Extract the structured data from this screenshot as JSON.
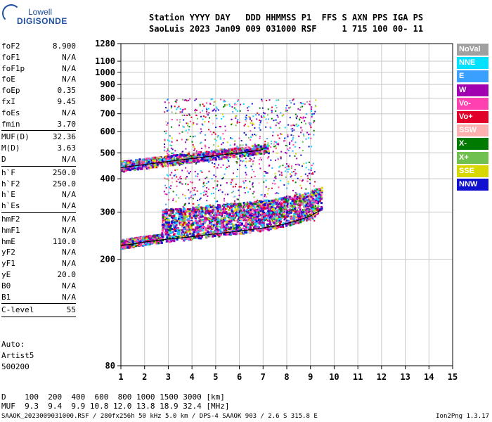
{
  "logo": {
    "line1": "Lowell",
    "line2": "DIGISONDE"
  },
  "header": {
    "line1": "Station YYYY DAY   DDD HHMMSS P1  FFS S AXN PPS IGA PS",
    "line2": "SaoLuis 2023 Jan09 009 031000 RSF     1 715 100 00- 11"
  },
  "params": [
    {
      "label": "foF2",
      "value": "8.900",
      "sep_after": false
    },
    {
      "label": "foF1",
      "value": "N/A",
      "sep_after": false
    },
    {
      "label": "foF1p",
      "value": "N/A",
      "sep_after": false
    },
    {
      "label": "foE",
      "value": "N/A",
      "sep_after": false
    },
    {
      "label": "foEp",
      "value": "0.35",
      "sep_after": false
    },
    {
      "label": "fxI",
      "value": "9.45",
      "sep_after": false
    },
    {
      "label": "foEs",
      "value": "N/A",
      "sep_after": false
    },
    {
      "label": "fmin",
      "value": "3.70",
      "sep_after": true
    },
    {
      "label": "MUF(D)",
      "value": "32.36",
      "sep_after": false
    },
    {
      "label": "M(D)",
      "value": "3.63",
      "sep_after": false
    },
    {
      "label": "D",
      "value": "N/A",
      "sep_after": true
    },
    {
      "label": "h`F",
      "value": "250.0",
      "sep_after": false
    },
    {
      "label": "h`F2",
      "value": "250.0",
      "sep_after": false
    },
    {
      "label": "h`E",
      "value": "N/A",
      "sep_after": false
    },
    {
      "label": "h`Es",
      "value": "N/A",
      "sep_after": true
    },
    {
      "label": "hmF2",
      "value": "N/A",
      "sep_after": false
    },
    {
      "label": "hmF1",
      "value": "N/A",
      "sep_after": false
    },
    {
      "label": "hmE",
      "value": "110.0",
      "sep_after": false
    },
    {
      "label": "yF2",
      "value": "N/A",
      "sep_after": false
    },
    {
      "label": "yF1",
      "value": "N/A",
      "sep_after": false
    },
    {
      "label": "yE",
      "value": "20.0",
      "sep_after": false
    },
    {
      "label": "B0",
      "value": "N/A",
      "sep_after": false
    },
    {
      "label": "B1",
      "value": "N/A",
      "sep_after": true
    },
    {
      "label": "C-level",
      "value": "55",
      "sep_after": true
    }
  ],
  "autoscale": {
    "line1": "Auto:",
    "line2": "Artist5",
    "line3": "500200"
  },
  "legend": [
    {
      "label": "NoVal",
      "color": "#a0a0a0"
    },
    {
      "label": "NNE",
      "color": "#00e0ff"
    },
    {
      "label": "E",
      "color": "#3aa0ff"
    },
    {
      "label": "W",
      "color": "#a000b0"
    },
    {
      "label": "Vo-",
      "color": "#ff40b0"
    },
    {
      "label": "Vo+",
      "color": "#e0002a"
    },
    {
      "label": "SSW",
      "color": "#ffb0b0"
    },
    {
      "label": "X-",
      "color": "#007a00"
    },
    {
      "label": "X+",
      "color": "#70c050"
    },
    {
      "label": "SSE",
      "color": "#d8d800"
    },
    {
      "label": "NNW",
      "color": "#1010d0"
    }
  ],
  "chart_data": {
    "type": "scatter",
    "xlim": [
      1,
      15
    ],
    "ylim": [
      80,
      1280
    ],
    "yscale": "log",
    "x_ticks": [
      1,
      2,
      3,
      4,
      5,
      6,
      7,
      8,
      9,
      10,
      11,
      12,
      13,
      14,
      15
    ],
    "y_ticks": [
      80,
      200,
      300,
      400,
      500,
      600,
      700,
      800,
      900,
      1000,
      1100,
      1280
    ],
    "grid": true,
    "traces": [
      {
        "name": "",
        "x": [
          1.0,
          1.5,
          2.0,
          2.5,
          3.0,
          3.5,
          4.0,
          4.5,
          5.0,
          5.5,
          6.0,
          6.5,
          7.0,
          7.5,
          8.0,
          8.5,
          9.0,
          9.4
        ],
        "y": [
          225,
          228,
          232,
          235,
          238,
          240,
          243,
          246,
          249,
          252,
          255,
          258,
          262,
          266,
          272,
          280,
          290,
          305
        ]
      },
      {
        "name": "",
        "x": [
          1.0,
          1.5,
          2.0,
          2.5,
          3.0,
          3.5,
          4.0,
          4.5,
          5.0,
          5.5,
          6.0,
          6.5,
          7.0
        ],
        "y": [
          440,
          446,
          452,
          458,
          464,
          470,
          476,
          482,
          488,
          494,
          500,
          506,
          514
        ]
      }
    ]
  },
  "distance_table": {
    "row1": "D    100  200  400  600  800 1000 1500 3000 [km]",
    "row2": "MUF  9.3  9.4  9.9 10.8 12.0 13.8 18.9 32.4 [MHz]"
  },
  "footer": "SAAOK_2023009031000.RSF / 280fx256h 50 kHz 5.0 km / DPS-4 SAAOK 903 / 2.6 S 315.8 E",
  "version": "Ion2Png 1.3.17"
}
